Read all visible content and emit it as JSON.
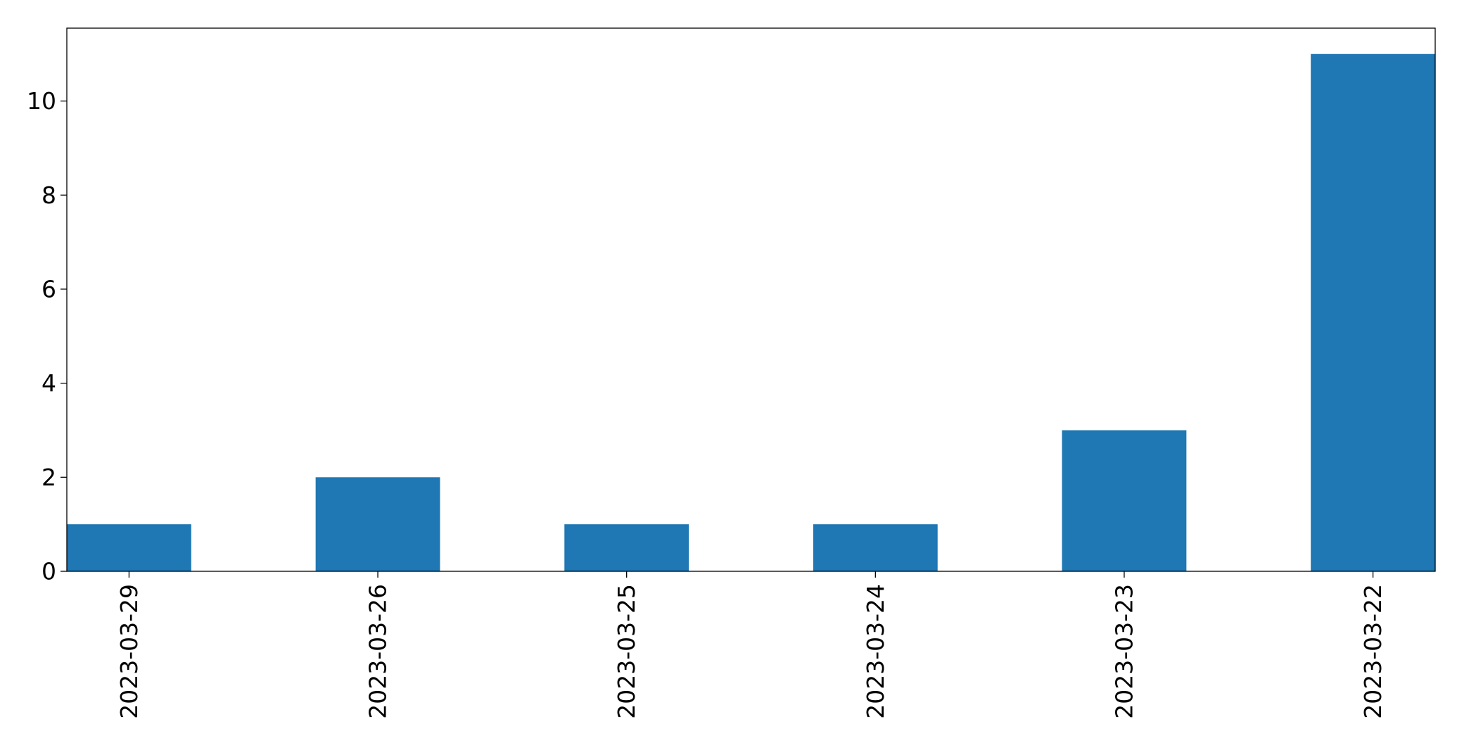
{
  "chart_data": {
    "type": "bar",
    "title": "",
    "xlabel": "",
    "ylabel": "",
    "categories": [
      "2023-03-29",
      "2023-03-26",
      "2023-03-25",
      "2023-03-24",
      "2023-03-23",
      "2023-03-22"
    ],
    "series": [
      {
        "values": [
          1,
          2,
          1,
          1,
          3,
          11
        ],
        "color": "#1f77b4"
      }
    ],
    "ylim": [
      0,
      11.55
    ],
    "yticks": [
      0,
      2,
      4,
      6,
      8,
      10
    ],
    "grid": false,
    "legend": false
  }
}
